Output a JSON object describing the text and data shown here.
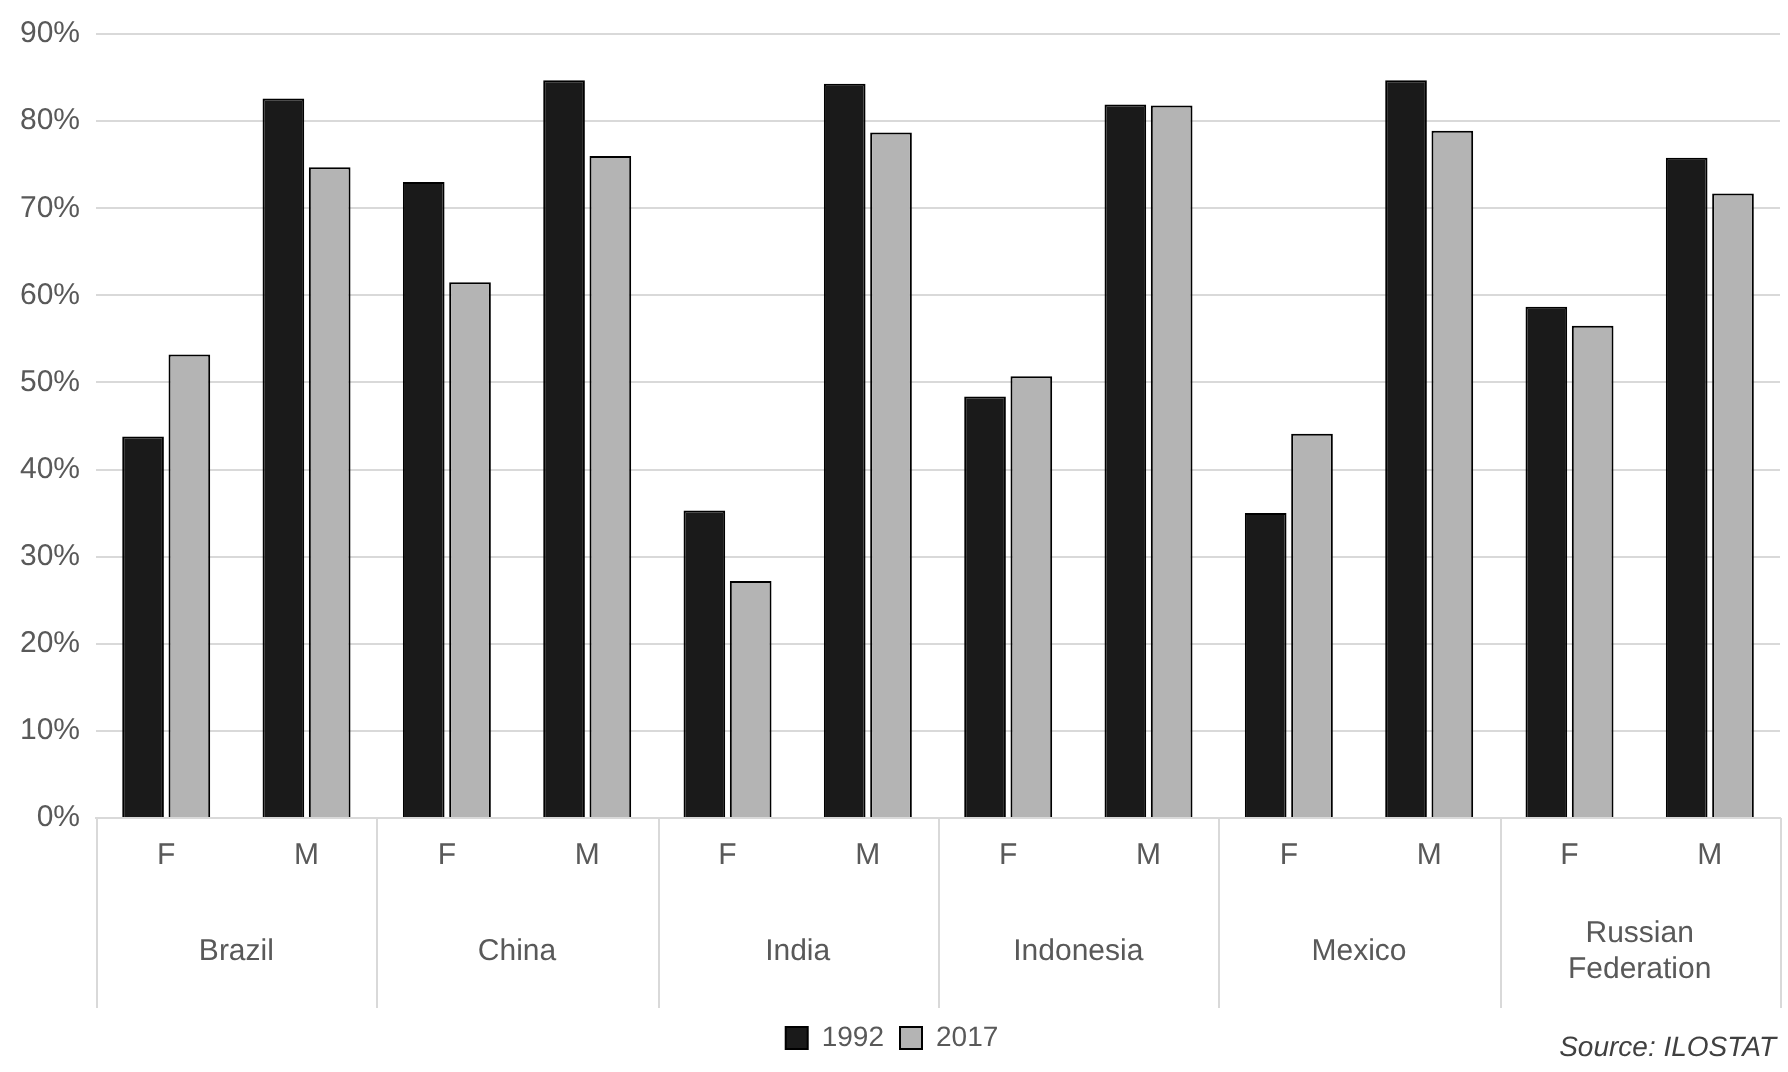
{
  "chart_data": {
    "type": "bar",
    "categories": [
      "F",
      "M",
      "F",
      "M",
      "F",
      "M",
      "F",
      "M",
      "F",
      "M",
      "F",
      "M"
    ],
    "series": [
      {
        "name": "1992",
        "color": "#1a1a1a",
        "values": [
          43.8,
          82.6,
          73.0,
          84.7,
          35.3,
          84.3,
          48.4,
          81.9,
          35.0,
          84.7,
          58.7,
          75.8
        ]
      },
      {
        "name": "2017",
        "color": "#b4b4b4",
        "values": [
          53.2,
          74.7,
          61.5,
          76.0,
          27.2,
          78.7,
          50.7,
          81.8,
          44.1,
          78.9,
          56.5,
          71.7
        ]
      }
    ],
    "ylim": [
      0,
      90
    ],
    "yticks": [
      {
        "value": 0,
        "label": "0%"
      },
      {
        "value": 10,
        "label": "10%"
      },
      {
        "value": 20,
        "label": "20%"
      },
      {
        "value": 30,
        "label": "30%"
      },
      {
        "value": 40,
        "label": "40%"
      },
      {
        "value": 50,
        "label": "50%"
      },
      {
        "value": 60,
        "label": "60%"
      },
      {
        "value": 70,
        "label": "70%"
      },
      {
        "value": 80,
        "label": "80%"
      },
      {
        "value": 90,
        "label": "90%"
      }
    ],
    "grid": "y",
    "legend": "bottom",
    "annotations": [
      "Brazil",
      "China",
      "India",
      "Indonesia",
      "Mexico",
      "Russian Federation",
      "Source: ILOSTAT"
    ]
  }
}
